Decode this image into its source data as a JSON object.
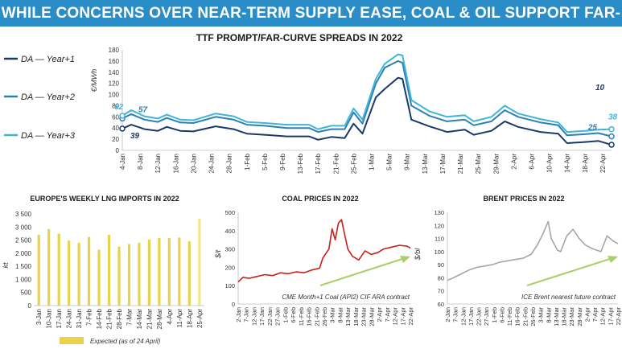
{
  "banner": "WHILE CONCERNS OVER NEAR-TERM SUPPLY EASE, COAL & OIL SUPPORT FAR-CURVE",
  "colors": {
    "banner": "#2b8dc7",
    "y1": "#1a3a6b",
    "y2": "#2e7fb3",
    "y3": "#3fb6d8",
    "lng": "#e8d34a",
    "coal": "#cc1f1a",
    "brent": "#a6a6a6",
    "trend": "#a9cf6a"
  },
  "chart_data": [
    {
      "type": "line",
      "title": "TTF PROMPT/FAR-CURVE SPREADS IN 2022",
      "ylabel": "€/MWh",
      "ylim": [
        0,
        180
      ],
      "yticks": [
        0,
        20,
        40,
        60,
        80,
        100,
        120,
        140,
        160,
        180
      ],
      "xlim": [
        "2022-01-04",
        "2022-04-24"
      ],
      "xticks": [
        "4-Jan",
        "8-Jan",
        "12-Jan",
        "16-Jan",
        "20-Jan",
        "24-Jan",
        "28-Jan",
        "1-Feb",
        "5-Feb",
        "9-Feb",
        "13-Feb",
        "17-Feb",
        "21-Feb",
        "25-Feb",
        "1-Mar",
        "5-Mar",
        "9-Mar",
        "13-Mar",
        "17-Mar",
        "21-Mar",
        "25-Mar",
        "29-Mar",
        "2-Apr",
        "6-Apr",
        "10-Apr",
        "14-Apr",
        "18-Apr",
        "22-Apr"
      ],
      "legend_position": "left",
      "series": [
        {
          "name": "DA — Year+1",
          "color": "#1a3a6b",
          "x": [
            "2022-01-04",
            "2022-01-06",
            "2022-01-09",
            "2022-01-12",
            "2022-01-14",
            "2022-01-17",
            "2022-01-20",
            "2022-01-25",
            "2022-01-29",
            "2022-02-01",
            "2022-02-05",
            "2022-02-10",
            "2022-02-15",
            "2022-02-17",
            "2022-02-20",
            "2022-02-23",
            "2022-02-25",
            "2022-02-27",
            "2022-03-02",
            "2022-03-04",
            "2022-03-07",
            "2022-03-08",
            "2022-03-10",
            "2022-03-14",
            "2022-03-18",
            "2022-03-22",
            "2022-03-24",
            "2022-03-28",
            "2022-03-31",
            "2022-04-03",
            "2022-04-08",
            "2022-04-12",
            "2022-04-14",
            "2022-04-18",
            "2022-04-21",
            "2022-04-24"
          ],
          "y": [
            39,
            46,
            38,
            35,
            42,
            35,
            34,
            43,
            38,
            30,
            28,
            25,
            25,
            19,
            24,
            22,
            48,
            30,
            95,
            110,
            130,
            128,
            55,
            43,
            33,
            37,
            28,
            35,
            52,
            42,
            33,
            30,
            13,
            15,
            17,
            10
          ]
        },
        {
          "name": "DA — Year+2",
          "color": "#2e7fb3",
          "x": [
            "2022-01-04",
            "2022-01-06",
            "2022-01-09",
            "2022-01-12",
            "2022-01-14",
            "2022-01-17",
            "2022-01-20",
            "2022-01-25",
            "2022-01-29",
            "2022-02-01",
            "2022-02-05",
            "2022-02-10",
            "2022-02-15",
            "2022-02-17",
            "2022-02-20",
            "2022-02-23",
            "2022-02-25",
            "2022-02-27",
            "2022-03-02",
            "2022-03-04",
            "2022-03-07",
            "2022-03-08",
            "2022-03-10",
            "2022-03-14",
            "2022-03-18",
            "2022-03-22",
            "2022-03-24",
            "2022-03-28",
            "2022-03-31",
            "2022-04-03",
            "2022-04-08",
            "2022-04-12",
            "2022-04-14",
            "2022-04-18",
            "2022-04-21",
            "2022-04-24"
          ],
          "y": [
            57,
            65,
            55,
            51,
            58,
            50,
            49,
            60,
            55,
            46,
            44,
            40,
            40,
            33,
            38,
            38,
            68,
            48,
            120,
            148,
            160,
            157,
            80,
            62,
            52,
            55,
            45,
            52,
            72,
            60,
            50,
            45,
            27,
            29,
            31,
            25
          ]
        },
        {
          "name": "DA — Year+3",
          "color": "#3fb6d8",
          "x": [
            "2022-01-04",
            "2022-01-06",
            "2022-01-09",
            "2022-01-12",
            "2022-01-14",
            "2022-01-17",
            "2022-01-20",
            "2022-01-25",
            "2022-01-29",
            "2022-02-01",
            "2022-02-05",
            "2022-02-10",
            "2022-02-15",
            "2022-02-17",
            "2022-02-20",
            "2022-02-23",
            "2022-02-25",
            "2022-02-27",
            "2022-03-02",
            "2022-03-04",
            "2022-03-07",
            "2022-03-08",
            "2022-03-10",
            "2022-03-14",
            "2022-03-18",
            "2022-03-22",
            "2022-03-24",
            "2022-03-28",
            "2022-03-31",
            "2022-04-03",
            "2022-04-08",
            "2022-04-12",
            "2022-04-14",
            "2022-04-18",
            "2022-04-21",
            "2022-04-24"
          ],
          "y": [
            62,
            72,
            61,
            57,
            64,
            55,
            54,
            66,
            61,
            51,
            49,
            46,
            46,
            38,
            44,
            44,
            75,
            55,
            128,
            155,
            172,
            170,
            90,
            70,
            60,
            63,
            52,
            60,
            80,
            66,
            56,
            50,
            33,
            35,
            37,
            38
          ]
        }
      ],
      "annotations": [
        {
          "text": "62",
          "series": "DA — Year+3",
          "x": "2022-01-04",
          "y": 62
        },
        {
          "text": "57",
          "series": "DA — Year+2",
          "x": "2022-01-04",
          "y": 57
        },
        {
          "text": "39",
          "series": "DA — Year+1",
          "x": "2022-01-04",
          "y": 39
        },
        {
          "text": "10",
          "series": "DA — Year+1",
          "x": "2022-04-24",
          "y": 10
        },
        {
          "text": "25",
          "series": "DA — Year+2",
          "x": "2022-04-24",
          "y": 25
        },
        {
          "text": "38",
          "series": "DA — Year+3",
          "x": "2022-04-24",
          "y": 38
        }
      ]
    },
    {
      "type": "bar",
      "title": "EUROPE'S WEEKLY LNG IMPORTS IN 2022",
      "ylabel": "kt",
      "ylim": [
        0,
        3500
      ],
      "yticks": [
        0,
        500,
        1000,
        1500,
        2000,
        2500,
        3000,
        3500
      ],
      "categories": [
        "3-Jan",
        "10-Jan",
        "17-Jan",
        "24-Jan",
        "31-Jan",
        "7-Feb",
        "14-Feb",
        "21-Feb",
        "28-Feb",
        "7-Mar",
        "14-Mar",
        "21-Mar",
        "28-Mar",
        "4-Apr",
        "11-Apr",
        "18-Apr",
        "25-Apr"
      ],
      "values": [
        2700,
        2920,
        2750,
        2480,
        2400,
        2620,
        2130,
        2700,
        2250,
        2350,
        2400,
        2520,
        2580,
        2580,
        2600,
        2450,
        3320
      ],
      "legend": [
        "Expected (as of 24 April)"
      ],
      "expected_categories": [
        "25-Apr"
      ]
    },
    {
      "type": "line",
      "title": "COAL PRICES IN 2022",
      "ylabel": "$/t",
      "ylim": [
        0,
        500
      ],
      "yticks": [
        0,
        100,
        200,
        300,
        400,
        500
      ],
      "xticks": [
        "2-Jan",
        "7-Jan",
        "12-Jan",
        "17-Jan",
        "22-Jan",
        "27-Jan",
        "1-Feb",
        "6-Feb",
        "11-Feb",
        "16-Feb",
        "21-Feb",
        "26-Feb",
        "3-Mar",
        "8-Mar",
        "13-Mar",
        "18-Mar",
        "23-Mar",
        "28-Mar",
        "2-Apr",
        "7-Apr",
        "12-Apr",
        "17-Apr",
        "22-Apr"
      ],
      "series": [
        {
          "name": "CME Month+1 Coal (API2) CIF ARA contract",
          "color": "#cc1f1a",
          "x": [
            "2022-01-02",
            "2022-01-05",
            "2022-01-09",
            "2022-01-14",
            "2022-01-19",
            "2022-01-24",
            "2022-01-29",
            "2022-02-03",
            "2022-02-08",
            "2022-02-13",
            "2022-02-18",
            "2022-02-23",
            "2022-02-25",
            "2022-03-01",
            "2022-03-03",
            "2022-03-05",
            "2022-03-07",
            "2022-03-09",
            "2022-03-11",
            "2022-03-13",
            "2022-03-16",
            "2022-03-20",
            "2022-03-24",
            "2022-03-28",
            "2022-04-01",
            "2022-04-05",
            "2022-04-10",
            "2022-04-15",
            "2022-04-20",
            "2022-04-22"
          ],
          "y": [
            120,
            145,
            140,
            150,
            160,
            155,
            170,
            165,
            175,
            170,
            185,
            195,
            250,
            300,
            410,
            350,
            440,
            460,
            380,
            300,
            260,
            240,
            290,
            270,
            280,
            300,
            310,
            320,
            315,
            305
          ]
        }
      ],
      "trend_arrow": true
    },
    {
      "type": "line",
      "title": "BRENT PRICES IN 2022",
      "ylabel": "$/bl",
      "ylim": [
        60,
        130
      ],
      "yticks": [
        60,
        70,
        80,
        90,
        100,
        110,
        120,
        130
      ],
      "xticks": [
        "2-Jan",
        "7-Jan",
        "12-Jan",
        "17-Jan",
        "22-Jan",
        "27-Jan",
        "1-Feb",
        "6-Feb",
        "11-Feb",
        "16-Feb",
        "21-Feb",
        "26-Feb",
        "3-Mar",
        "8-Mar",
        "13-Mar",
        "18-Mar",
        "23-Mar",
        "28-Mar",
        "2-Apr",
        "7-Apr",
        "12-Apr",
        "17-Apr",
        "22-Apr"
      ],
      "series": [
        {
          "name": "ICE Brent nearest future contract",
          "color": "#a6a6a6",
          "x": [
            "2022-01-02",
            "2022-01-06",
            "2022-01-11",
            "2022-01-16",
            "2022-01-21",
            "2022-01-26",
            "2022-01-31",
            "2022-02-05",
            "2022-02-10",
            "2022-02-15",
            "2022-02-20",
            "2022-02-25",
            "2022-03-01",
            "2022-03-04",
            "2022-03-08",
            "2022-03-10",
            "2022-03-14",
            "2022-03-16",
            "2022-03-20",
            "2022-03-24",
            "2022-03-28",
            "2022-04-01",
            "2022-04-06",
            "2022-04-11",
            "2022-04-15",
            "2022-04-19",
            "2022-04-22"
          ],
          "y": [
            78,
            80,
            83,
            86,
            88,
            89,
            90,
            92,
            93,
            94,
            95,
            98,
            105,
            112,
            123,
            110,
            101,
            100,
            112,
            117,
            110,
            105,
            102,
            100,
            112,
            108,
            106
          ]
        }
      ],
      "trend_arrow": true
    }
  ]
}
